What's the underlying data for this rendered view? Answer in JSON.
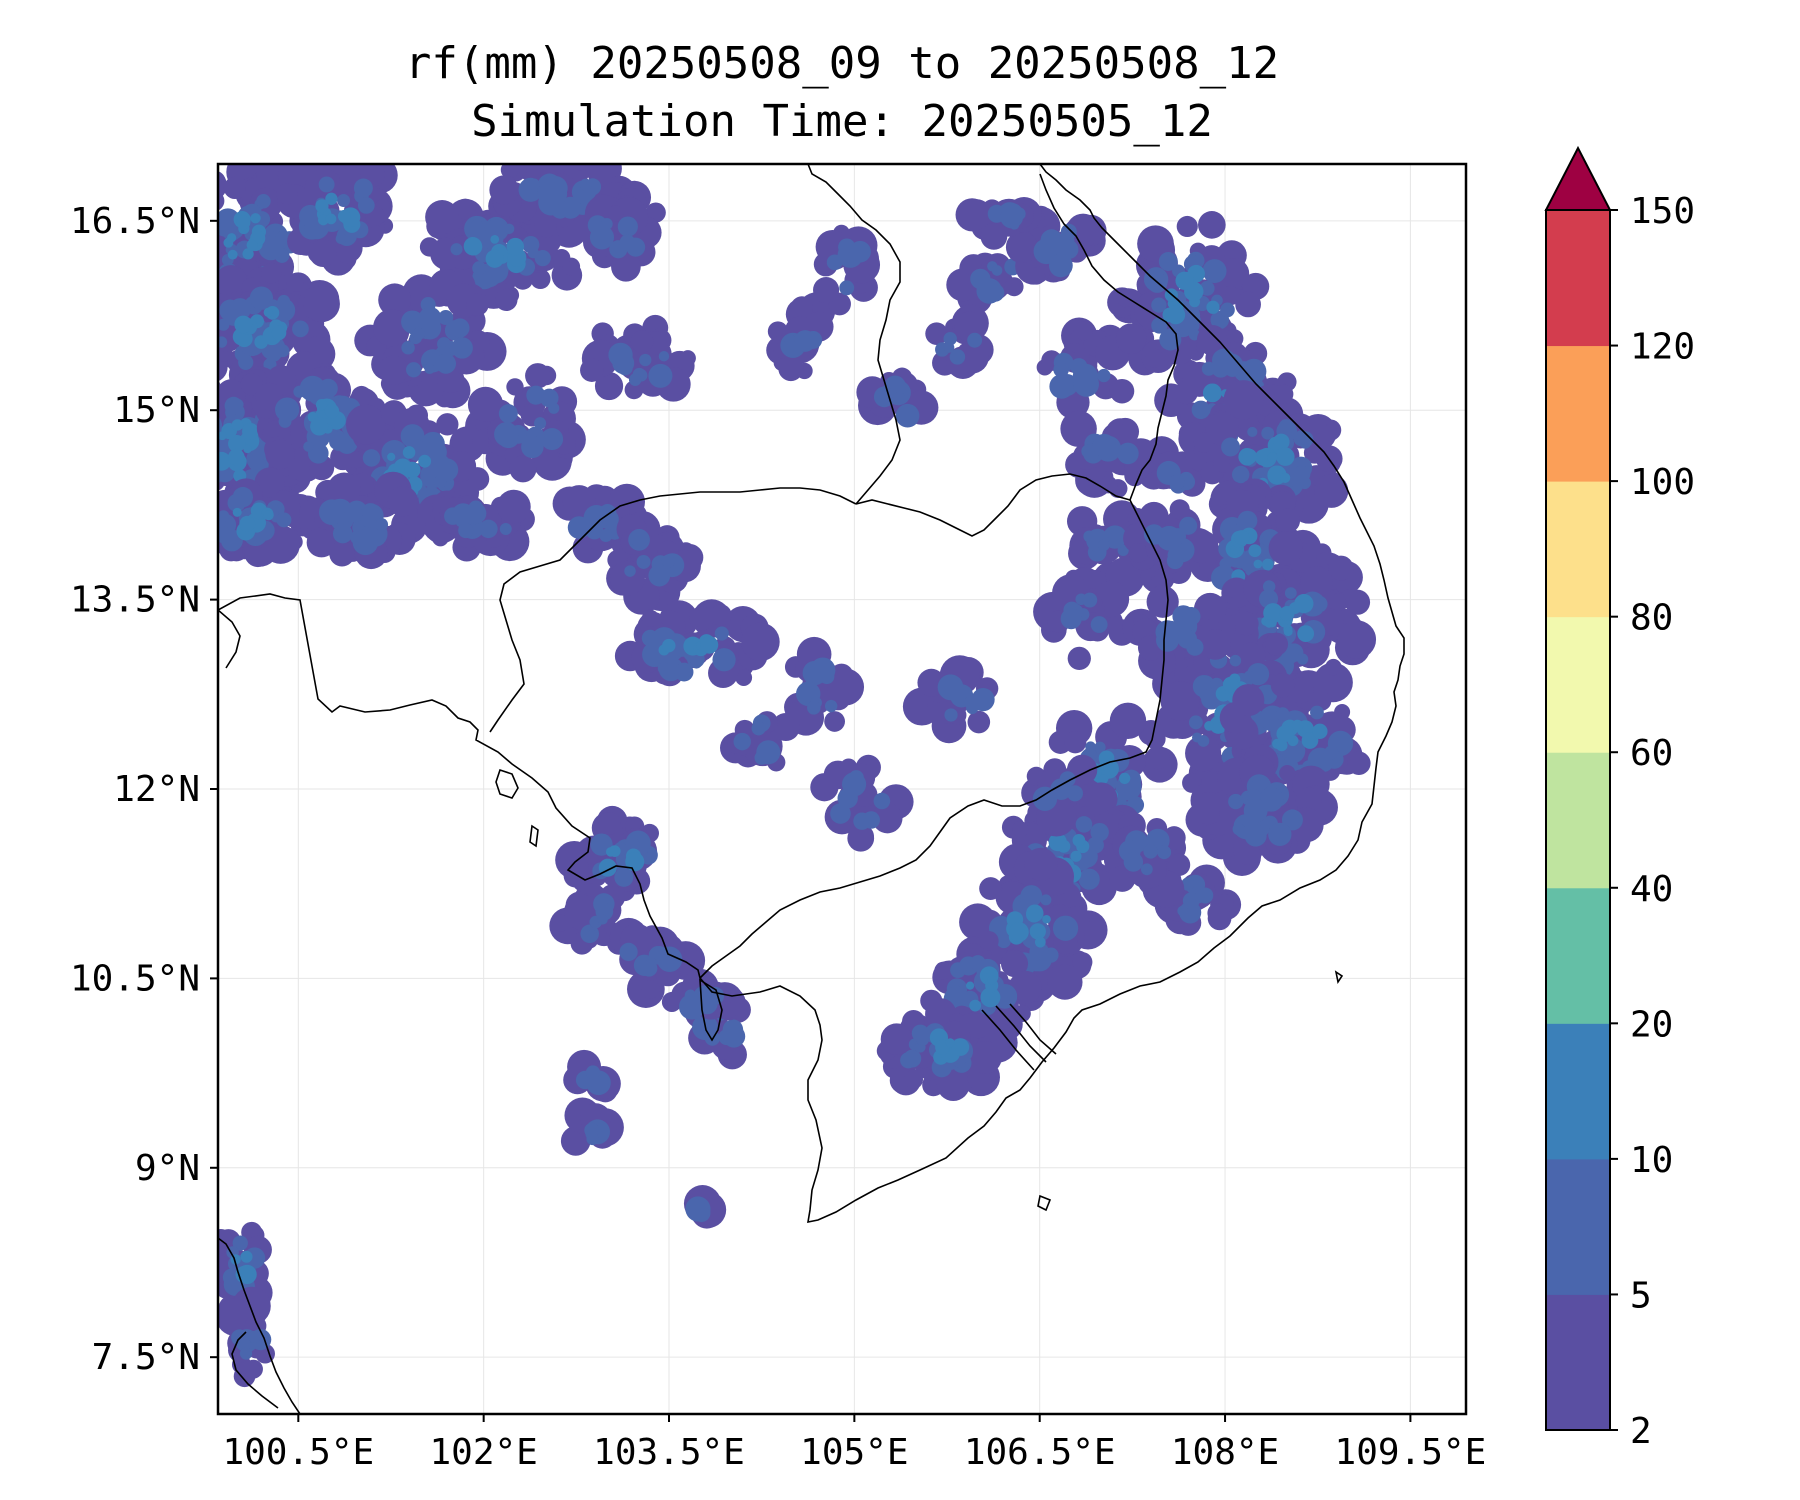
{
  "title_line1": "rf(mm) 20250508_09 to 20250508_12",
  "title_line2": "Simulation Time: 20250505_12",
  "map": {
    "lon_range": [
      99.85,
      109.95
    ],
    "lat_range": [
      7.05,
      16.95
    ],
    "x_ticks": [
      {
        "value": 100.5,
        "label": "100.5°E"
      },
      {
        "value": 102,
        "label": "102°E"
      },
      {
        "value": 103.5,
        "label": "103.5°E"
      },
      {
        "value": 105,
        "label": "105°E"
      },
      {
        "value": 106.5,
        "label": "106.5°E"
      },
      {
        "value": 108,
        "label": "108°E"
      },
      {
        "value": 109.5,
        "label": "109.5°E"
      }
    ],
    "y_ticks": [
      {
        "value": 16.5,
        "label": "16.5°N"
      },
      {
        "value": 15,
        "label": "15°N"
      },
      {
        "value": 13.5,
        "label": "13.5°N"
      },
      {
        "value": 12,
        "label": "12°N"
      },
      {
        "value": 10.5,
        "label": "10.5°N"
      },
      {
        "value": 9,
        "label": "9°N"
      },
      {
        "value": 7.5,
        "label": "7.5°N"
      }
    ],
    "grid": true
  },
  "colorbar": {
    "levels": [
      2,
      5,
      10,
      20,
      40,
      60,
      80,
      100,
      120,
      150
    ],
    "labels": [
      "2",
      "5",
      "10",
      "20",
      "40",
      "60",
      "80",
      "100",
      "120",
      "150"
    ],
    "colors": [
      "#5a4fa2",
      "#4a66ad",
      "#3b80b9",
      "#64bfa6",
      "#bfe49f",
      "#f2f9ae",
      "#fde08b",
      "#fb9f58",
      "#d33d4e"
    ],
    "extend_color": "#9e0142",
    "extend": "max"
  }
}
